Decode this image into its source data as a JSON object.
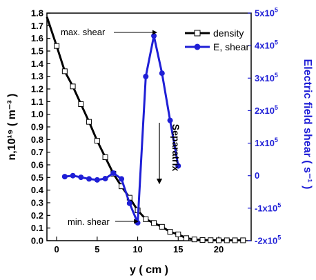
{
  "chart_data": {
    "type": "line",
    "xlabel": "y ( cm )",
    "ylabel_left": "n,10¹⁹ ( m⁻³ )",
    "ylabel_right": "Electric field shear ( s⁻¹ )",
    "xlim": [
      -1.2,
      24
    ],
    "ylim_left": [
      0,
      1.8
    ],
    "ylim_right": [
      -200000,
      500000
    ],
    "x_ticks": [
      0,
      5,
      10,
      15,
      20
    ],
    "y_left_ticks": [
      0.0,
      0.1,
      0.2,
      0.3,
      0.4,
      0.5,
      0.6,
      0.7,
      0.8,
      0.9,
      1.0,
      1.1,
      1.2,
      1.3,
      1.4,
      1.5,
      1.6,
      1.7,
      1.8
    ],
    "y_left_tick_labels": [
      "0.0",
      "0.1",
      "0.2",
      "0.3",
      "0.4",
      "0.5",
      "0.6",
      "0.7",
      "0.8",
      "0.9",
      "1.0",
      "1.1",
      "1.2",
      "1.3",
      "1.4",
      "1.5",
      "1.6",
      "1.7",
      "1.8"
    ],
    "y_right_ticks": [
      -200000,
      -100000,
      0,
      100000,
      200000,
      300000,
      400000,
      500000
    ],
    "y_right_tick_labels": [
      {
        "base": "-2x10",
        "exp": "5"
      },
      {
        "base": "-1x10",
        "exp": "5"
      },
      {
        "base": "0",
        "exp": ""
      },
      {
        "base": "1x10",
        "exp": "5"
      },
      {
        "base": "2x10",
        "exp": "5"
      },
      {
        "base": "3x10",
        "exp": "5"
      },
      {
        "base": "4x10",
        "exp": "5"
      },
      {
        "base": "5x10",
        "exp": "5"
      }
    ],
    "grid": false,
    "legend_position": "top-right",
    "series": [
      {
        "name": "density",
        "axis": "left",
        "color": "#000000",
        "marker": "open-square",
        "x": [
          -1.2,
          0,
          1,
          2,
          3,
          4,
          5,
          6,
          7,
          8,
          9,
          10,
          11,
          12,
          13,
          14,
          15,
          16,
          17,
          18,
          19,
          20,
          21,
          22,
          23
        ],
        "y": [
          1.77,
          1.54,
          1.34,
          1.22,
          1.08,
          0.94,
          0.79,
          0.66,
          0.53,
          0.43,
          0.34,
          0.24,
          0.17,
          0.14,
          0.11,
          0.07,
          0.05,
          0.02,
          0.01,
          0.005,
          0.004,
          0.003,
          0.003,
          0.003,
          0.003
        ]
      },
      {
        "name": "E, shear",
        "axis": "right",
        "color": "#1f1fd6",
        "marker": "filled-circle",
        "x": [
          1,
          2,
          3,
          4,
          5,
          6,
          7,
          8,
          9,
          10,
          11,
          12,
          13,
          14,
          15
        ],
        "y": [
          -3000,
          0,
          -5000,
          -10000,
          -13000,
          -9000,
          8000,
          -10000,
          -85000,
          -145000,
          305000,
          430000,
          315000,
          170000,
          30000
        ]
      }
    ],
    "annotations": [
      {
        "text": "max. shear",
        "target_x": 12,
        "target_y_right": 430000
      },
      {
        "text": "min. shear",
        "target_x": 10,
        "target_y_right": -145000
      },
      {
        "text": "Separatrix",
        "x": 7
      }
    ]
  }
}
